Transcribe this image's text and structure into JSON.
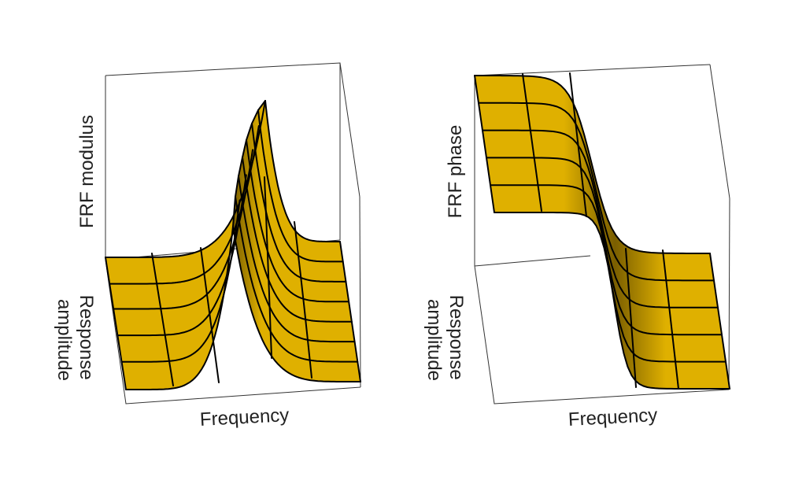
{
  "colors": {
    "surface": "#dfb000",
    "surface_shade": "#7a5e00",
    "grid": "#000000",
    "box": "#333333"
  },
  "plots": [
    {
      "name": "modulus",
      "surface_type": "resonance-peak",
      "z_label": "FRF modulus",
      "y_label_lines": [
        "Response",
        "amplitude"
      ],
      "x_label": "Frequency"
    },
    {
      "name": "phase",
      "surface_type": "phase-step",
      "z_label": "FRF phase",
      "y_label_lines": [
        "Response",
        "amplitude"
      ],
      "x_label": "Frequency"
    }
  ]
}
